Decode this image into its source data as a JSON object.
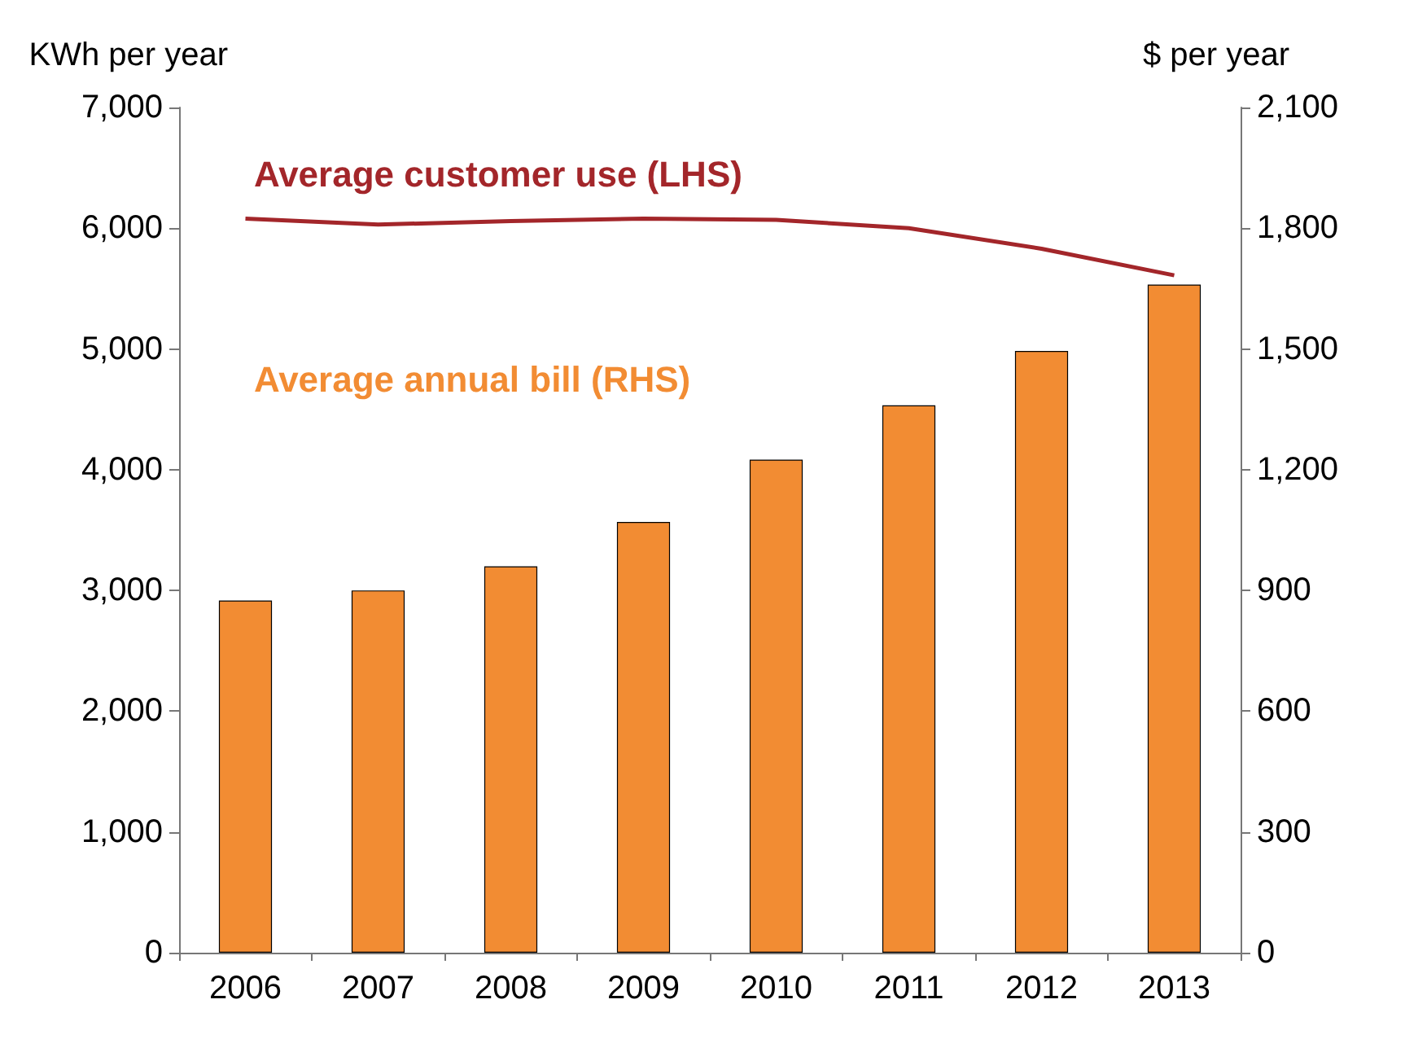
{
  "chart_data": {
    "type": "bar",
    "ylabel": "KWh per year",
    "y2label": "$ per year",
    "categories": [
      "2006",
      "2007",
      "2008",
      "2009",
      "2010",
      "2011",
      "2012",
      "2013"
    ],
    "series": [
      {
        "name": "Average customer use (LHS)",
        "type": "line",
        "color": "#a3262a",
        "values": [
          6080,
          6030,
          6060,
          6080,
          6070,
          6000,
          5830,
          5610
        ]
      },
      {
        "name": "Average annual bill (RHS)",
        "axis": "y2",
        "color": "#f28c33",
        "values": [
          875,
          900,
          960,
          1070,
          1225,
          1360,
          1495,
          1660
        ]
      }
    ],
    "ylim": [
      0,
      7000
    ],
    "yticks": [
      {
        "value": 0,
        "label": "0"
      },
      {
        "value": 1000,
        "label": "1,000"
      },
      {
        "value": 2000,
        "label": "2,000"
      },
      {
        "value": 3000,
        "label": "3,000"
      },
      {
        "value": 4000,
        "label": "4,000"
      },
      {
        "value": 5000,
        "label": "5,000"
      },
      {
        "value": 6000,
        "label": "6,000"
      },
      {
        "value": 7000,
        "label": "7,000"
      }
    ],
    "y2lim": [
      0,
      2100
    ],
    "y2ticks": [
      {
        "value": 0,
        "label": "0"
      },
      {
        "value": 300,
        "label": "300"
      },
      {
        "value": 600,
        "label": "600"
      },
      {
        "value": 900,
        "label": "900"
      },
      {
        "value": 1200,
        "label": "1,200"
      },
      {
        "value": 1500,
        "label": "1,500"
      },
      {
        "value": 1800,
        "label": "1,800"
      },
      {
        "value": 2100,
        "label": "2,100"
      }
    ],
    "grid": false,
    "legend": false,
    "marker": "none",
    "line_style": "solid"
  }
}
